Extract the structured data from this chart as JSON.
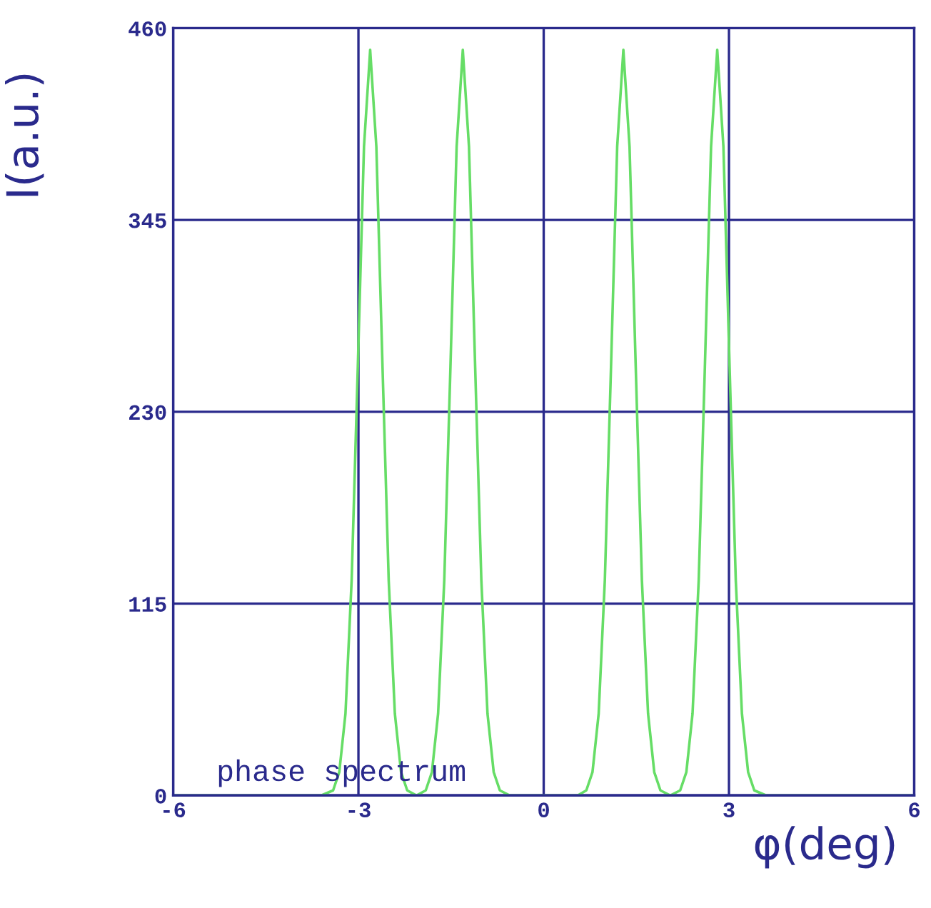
{
  "chart_data": {
    "type": "line",
    "xlabel": "φ(deg)",
    "ylabel": "I(a.u.)",
    "annotations": [
      {
        "text": "phase spectrum",
        "x": -5.3,
        "y": 5
      }
    ],
    "xlim": [
      -6,
      6
    ],
    "ylim": [
      0,
      460
    ],
    "xticks": [
      -6,
      -3,
      0,
      3,
      6
    ],
    "yticks": [
      0,
      115,
      230,
      345,
      460
    ],
    "grid": true,
    "marker": "none",
    "line_style": "solid",
    "series": [
      {
        "color": "#66dd66",
        "x": [
          -6,
          -3.6,
          -3.41,
          -3.31,
          -3.21,
          -3.11,
          -3.01,
          -2.91,
          -2.81,
          -2.71,
          -2.61,
          -2.51,
          -2.41,
          -2.31,
          -2.21,
          -2.06,
          -1.91,
          -1.81,
          -1.71,
          -1.61,
          -1.51,
          -1.41,
          -1.31,
          -1.21,
          -1.11,
          -1.01,
          -0.91,
          -0.81,
          -0.71,
          -0.55,
          0.55,
          0.69,
          0.79,
          0.89,
          0.99,
          1.09,
          1.19,
          1.29,
          1.39,
          1.49,
          1.59,
          1.69,
          1.79,
          1.89,
          2.05,
          2.21,
          2.31,
          2.41,
          2.51,
          2.61,
          2.71,
          2.81,
          2.91,
          3.01,
          3.11,
          3.21,
          3.31,
          3.41,
          3.6,
          6
        ],
        "values": [
          0,
          0,
          3,
          14,
          49,
          129,
          257,
          389,
          447,
          389,
          257,
          129,
          49,
          14,
          3,
          0,
          3,
          14,
          49,
          129,
          257,
          389,
          447,
          389,
          257,
          129,
          49,
          14,
          3,
          0,
          0,
          3,
          14,
          49,
          129,
          257,
          389,
          447,
          389,
          257,
          129,
          49,
          14,
          3,
          0,
          3,
          14,
          49,
          129,
          257,
          389,
          447,
          389,
          257,
          129,
          49,
          14,
          3,
          0,
          0
        ]
      }
    ]
  }
}
